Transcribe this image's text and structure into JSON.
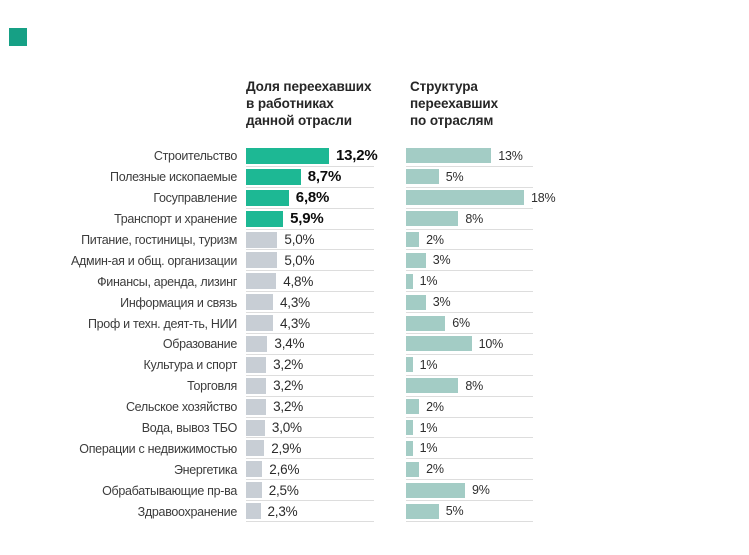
{
  "logo": {
    "color": "#16a085"
  },
  "headers": {
    "left_lines": [
      "Доля переехавших",
      "в работниках",
      "данной отрасли"
    ],
    "right_lines": [
      "Структура",
      "переехавших",
      "по отраслям"
    ]
  },
  "chart_data": {
    "type": "bar",
    "orientation": "horizontal",
    "grid": false,
    "categories": [
      "Строительство",
      "Полезные ископаемые",
      "Госуправление",
      "Транспорт и хранение",
      "Питание, гостиницы, туризм",
      "Админ-ая и общ. организации",
      "Финансы, аренда, лизинг",
      "Информация и связь",
      "Проф и техн. деят-ть, НИИ",
      "Образование",
      "Культура и спорт",
      "Торговля",
      "Сельское хозяйство",
      "Вода, вывоз ТБО",
      "Операции с недвижимостью",
      "Энергетика",
      "Обрабатывающие пр-ва",
      "Здравоохранение"
    ],
    "highlight_count": 4,
    "series": [
      {
        "name": "Доля переехавших в работниках данной отрасли",
        "unit": "%",
        "xmax": 13.2,
        "values": [
          13.2,
          8.7,
          6.8,
          5.9,
          5.0,
          5.0,
          4.8,
          4.3,
          4.3,
          3.4,
          3.2,
          3.2,
          3.2,
          3.0,
          2.9,
          2.6,
          2.5,
          2.3
        ],
        "labels": [
          "13,2%",
          "8,7%",
          "6,8%",
          "5,9%",
          "5,0%",
          "5,0%",
          "4,8%",
          "4,3%",
          "4,3%",
          "3,4%",
          "3,2%",
          "3,2%",
          "3,2%",
          "3,0%",
          "2,9%",
          "2,6%",
          "2,5%",
          "2,3%"
        ]
      },
      {
        "name": "Структура переехавших по отраслям",
        "unit": "%",
        "xmax": 18,
        "values": [
          13,
          5,
          18,
          8,
          2,
          3,
          1,
          3,
          6,
          10,
          1,
          8,
          2,
          1,
          1,
          2,
          9,
          5
        ],
        "labels": [
          "13%",
          "5%",
          "18%",
          "8%",
          "2%",
          "3%",
          "1%",
          "3%",
          "6%",
          "10%",
          "1%",
          "8%",
          "2%",
          "1%",
          "1%",
          "2%",
          "9%",
          "5%"
        ]
      }
    ],
    "colors": {
      "highlight": "#1db894",
      "muted": "#c8ced5",
      "structure": "#a3ccc5",
      "separator": "#dddddd"
    }
  }
}
